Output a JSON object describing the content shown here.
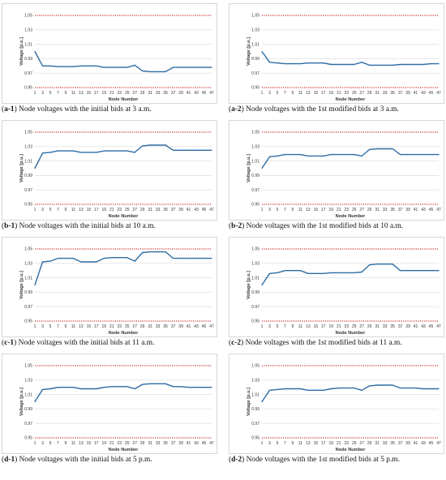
{
  "captions": [
    {
      "label": "a-1",
      "text": "Node voltages with the initial bids at 3 a.m."
    },
    {
      "label": "a-2",
      "text": "Node voltages with the 1st modified bids at 3 a.m."
    },
    {
      "label": "b-1",
      "text": "Node voltages with the initial bids at 10 a.m."
    },
    {
      "label": "b-2",
      "text": "Node voltages with the 1st modified bids at 10 a.m."
    },
    {
      "label": "c-1",
      "text": "Node voltages with the initial bids at 11 a.m."
    },
    {
      "label": "c-2",
      "text": "Node voltages with the 1st modified bids at 11 a.m."
    },
    {
      "label": "d-1",
      "text": "Node voltages with the initial bids at 5 p.m."
    },
    {
      "label": "d-2",
      "text": "Node voltages with the 1st modified bids at 5 p.m."
    }
  ],
  "colors": {
    "series": "#2e6ca4",
    "limit": "#c00000",
    "grid": "#d9d9d9"
  },
  "chart_data": [
    {
      "type": "line",
      "xlabel": "Node Number",
      "ylabel": "Voltage [p.u.]",
      "ylim": [
        0.95,
        1.05
      ],
      "yticks": [
        "0.95",
        "0.97",
        "0.99",
        "1.01",
        "1.03",
        "1.05"
      ],
      "xticks": [
        "1",
        "3",
        "5",
        "7",
        "9",
        "11",
        "13",
        "15",
        "17",
        "19",
        "21",
        "23",
        "25",
        "27",
        "29",
        "31",
        "33",
        "35",
        "37",
        "39",
        "41",
        "43",
        "45",
        "47"
      ],
      "limits": [
        0.95,
        1.05
      ],
      "x": [
        1,
        3,
        5,
        7,
        9,
        11,
        13,
        15,
        17,
        19,
        21,
        23,
        25,
        27,
        29,
        31,
        33,
        35,
        37,
        39,
        41,
        43,
        45,
        47
      ],
      "values": [
        1.0,
        0.98,
        0.98,
        0.979,
        0.979,
        0.979,
        0.98,
        0.98,
        0.98,
        0.978,
        0.978,
        0.978,
        0.978,
        0.981,
        0.973,
        0.972,
        0.972,
        0.972,
        0.978,
        0.978,
        0.978,
        0.978,
        0.978,
        0.978
      ]
    },
    {
      "type": "line",
      "xlabel": "Node Number",
      "ylabel": "Voltage [p.u.]",
      "ylim": [
        0.95,
        1.05
      ],
      "yticks": [
        "0.95",
        "0.97",
        "0.99",
        "1.01",
        "1.03",
        "1.05"
      ],
      "xticks": [
        "1",
        "3",
        "5",
        "7",
        "9",
        "11",
        "13",
        "15",
        "17",
        "19",
        "21",
        "23",
        "25",
        "27",
        "29",
        "31",
        "33",
        "35",
        "37",
        "39",
        "41",
        "43",
        "45",
        "47"
      ],
      "limits": [
        0.95,
        1.05
      ],
      "x": [
        1,
        3,
        5,
        7,
        9,
        11,
        13,
        15,
        17,
        19,
        21,
        23,
        25,
        27,
        29,
        31,
        33,
        35,
        37,
        39,
        41,
        43,
        45,
        47
      ],
      "values": [
        1.0,
        0.985,
        0.984,
        0.983,
        0.983,
        0.983,
        0.984,
        0.984,
        0.984,
        0.982,
        0.982,
        0.982,
        0.982,
        0.985,
        0.981,
        0.981,
        0.981,
        0.981,
        0.982,
        0.982,
        0.982,
        0.982,
        0.983,
        0.983
      ]
    },
    {
      "type": "line",
      "xlabel": "Node Number",
      "ylabel": "Voltage [p.u.]",
      "ylim": [
        0.95,
        1.05
      ],
      "yticks": [
        "0.95",
        "0.97",
        "0.99",
        "1.01",
        "1.03",
        "1.05"
      ],
      "xticks": [
        "1",
        "3",
        "5",
        "7",
        "9",
        "11",
        "13",
        "15",
        "17",
        "19",
        "21",
        "23",
        "25",
        "27",
        "29",
        "31",
        "33",
        "35",
        "37",
        "39",
        "41",
        "43",
        "45",
        "47"
      ],
      "limits": [
        0.95,
        1.05
      ],
      "x": [
        1,
        3,
        5,
        7,
        9,
        11,
        13,
        15,
        17,
        19,
        21,
        23,
        25,
        27,
        29,
        31,
        33,
        35,
        37,
        39,
        41,
        43,
        45,
        47
      ],
      "values": [
        1.0,
        1.021,
        1.022,
        1.024,
        1.024,
        1.024,
        1.022,
        1.022,
        1.022,
        1.024,
        1.024,
        1.024,
        1.024,
        1.022,
        1.031,
        1.032,
        1.032,
        1.032,
        1.025,
        1.025,
        1.025,
        1.025,
        1.025,
        1.025
      ]
    },
    {
      "type": "line",
      "xlabel": "Node Number",
      "ylabel": "Voltage [p.u.]",
      "ylim": [
        0.95,
        1.05
      ],
      "yticks": [
        "0.95",
        "0.97",
        "0.99",
        "1.01",
        "1.03",
        "1.05"
      ],
      "xticks": [
        "1",
        "3",
        "5",
        "7",
        "9",
        "11",
        "13",
        "15",
        "17",
        "19",
        "21",
        "23",
        "25",
        "27",
        "29",
        "31",
        "33",
        "35",
        "37",
        "39",
        "41",
        "43",
        "45",
        "47"
      ],
      "limits": [
        0.95,
        1.05
      ],
      "x": [
        1,
        3,
        5,
        7,
        9,
        11,
        13,
        15,
        17,
        19,
        21,
        23,
        25,
        27,
        29,
        31,
        33,
        35,
        37,
        39,
        41,
        43,
        45,
        47
      ],
      "values": [
        1.0,
        1.016,
        1.017,
        1.019,
        1.019,
        1.019,
        1.017,
        1.017,
        1.017,
        1.019,
        1.019,
        1.019,
        1.019,
        1.017,
        1.026,
        1.027,
        1.027,
        1.027,
        1.019,
        1.019,
        1.019,
        1.019,
        1.019,
        1.019
      ]
    },
    {
      "type": "line",
      "xlabel": "Node Number",
      "ylabel": "Voltage [p.u.]",
      "ylim": [
        0.95,
        1.05
      ],
      "yticks": [
        "0.95",
        "0.97",
        "0.99",
        "1.01",
        "1.03",
        "1.05"
      ],
      "xticks": [
        "1",
        "3",
        "5",
        "7",
        "9",
        "11",
        "13",
        "15",
        "17",
        "19",
        "21",
        "23",
        "25",
        "27",
        "29",
        "31",
        "33",
        "35",
        "37",
        "39",
        "41",
        "43",
        "45",
        "47"
      ],
      "limits": [
        0.95,
        1.05
      ],
      "x": [
        1,
        3,
        5,
        7,
        9,
        11,
        13,
        15,
        17,
        19,
        21,
        23,
        25,
        27,
        29,
        31,
        33,
        35,
        37,
        39,
        41,
        43,
        45,
        47
      ],
      "values": [
        1.0,
        1.032,
        1.033,
        1.037,
        1.037,
        1.037,
        1.032,
        1.032,
        1.032,
        1.037,
        1.038,
        1.038,
        1.038,
        1.033,
        1.045,
        1.046,
        1.046,
        1.046,
        1.037,
        1.037,
        1.037,
        1.037,
        1.037,
        1.037
      ]
    },
    {
      "type": "line",
      "xlabel": "Node Number",
      "ylabel": "Voltage [p.u.]",
      "ylim": [
        0.95,
        1.05
      ],
      "yticks": [
        "0.95",
        "0.97",
        "0.99",
        "1.01",
        "1.03",
        "1.05"
      ],
      "xticks": [
        "1",
        "3",
        "5",
        "7",
        "9",
        "11",
        "13",
        "15",
        "17",
        "19",
        "21",
        "23",
        "25",
        "27",
        "29",
        "31",
        "33",
        "35",
        "37",
        "39",
        "41",
        "43",
        "45",
        "47"
      ],
      "limits": [
        0.95,
        1.05
      ],
      "x": [
        1,
        3,
        5,
        7,
        9,
        11,
        13,
        15,
        17,
        19,
        21,
        23,
        25,
        27,
        29,
        31,
        33,
        35,
        37,
        39,
        41,
        43,
        45,
        47
      ],
      "values": [
        1.0,
        1.016,
        1.017,
        1.02,
        1.02,
        1.02,
        1.016,
        1.016,
        1.016,
        1.017,
        1.017,
        1.017,
        1.017,
        1.018,
        1.028,
        1.029,
        1.029,
        1.029,
        1.02,
        1.02,
        1.02,
        1.02,
        1.02,
        1.02
      ]
    },
    {
      "type": "line",
      "xlabel": "Node Number",
      "ylabel": "Voltage [p.u.]",
      "ylim": [
        0.95,
        1.05
      ],
      "yticks": [
        "0.95",
        "0.97",
        "0.99",
        "1.01",
        "1.03",
        "1.05"
      ],
      "xticks": [
        "1",
        "3",
        "5",
        "7",
        "9",
        "11",
        "13",
        "15",
        "17",
        "19",
        "21",
        "23",
        "25",
        "27",
        "29",
        "31",
        "33",
        "35",
        "37",
        "39",
        "41",
        "43",
        "45",
        "47"
      ],
      "limits": [
        0.95,
        1.05
      ],
      "x": [
        1,
        3,
        5,
        7,
        9,
        11,
        13,
        15,
        17,
        19,
        21,
        23,
        25,
        27,
        29,
        31,
        33,
        35,
        37,
        39,
        41,
        43,
        45,
        47
      ],
      "values": [
        1.0,
        1.017,
        1.018,
        1.02,
        1.02,
        1.02,
        1.018,
        1.018,
        1.018,
        1.02,
        1.021,
        1.021,
        1.021,
        1.018,
        1.024,
        1.025,
        1.025,
        1.025,
        1.021,
        1.021,
        1.02,
        1.02,
        1.02,
        1.02
      ]
    },
    {
      "type": "line",
      "xlabel": "Node Number",
      "ylabel": "Voltage [p.u.]",
      "ylim": [
        0.95,
        1.05
      ],
      "yticks": [
        "0.95",
        "0.97",
        "0.99",
        "1.01",
        "1.03",
        "1.05"
      ],
      "xticks": [
        "1",
        "3",
        "5",
        "7",
        "9",
        "11",
        "13",
        "15",
        "17",
        "19",
        "21",
        "23",
        "25",
        "27",
        "29",
        "31",
        "33",
        "35",
        "37",
        "39",
        "41",
        "43",
        "45",
        "47"
      ],
      "limits": [
        0.95,
        1.05
      ],
      "x": [
        1,
        3,
        5,
        7,
        9,
        11,
        13,
        15,
        17,
        19,
        21,
        23,
        25,
        27,
        29,
        31,
        33,
        35,
        37,
        39,
        41,
        43,
        45,
        47
      ],
      "values": [
        1.0,
        1.016,
        1.017,
        1.018,
        1.018,
        1.018,
        1.016,
        1.016,
        1.016,
        1.018,
        1.019,
        1.019,
        1.019,
        1.016,
        1.022,
        1.023,
        1.023,
        1.023,
        1.019,
        1.019,
        1.019,
        1.018,
        1.018,
        1.018
      ]
    }
  ]
}
